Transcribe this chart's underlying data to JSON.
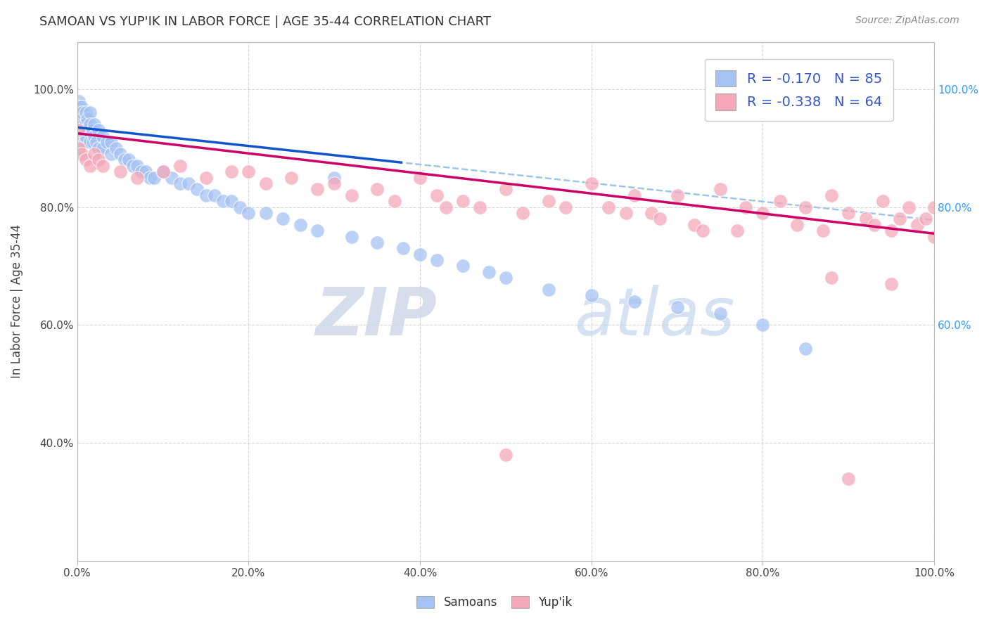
{
  "title": "SAMOAN VS YUP'IK IN LABOR FORCE | AGE 35-44 CORRELATION CHART",
  "source": "Source: ZipAtlas.com",
  "ylabel": "In Labor Force | Age 35-44",
  "legend_label_1": "Samoans",
  "legend_label_2": "Yup'ik",
  "R1": -0.17,
  "N1": 85,
  "R2": -0.338,
  "N2": 64,
  "color_blue": "#a4c2f4",
  "color_pink": "#f4a7b9",
  "color_blue_line": "#1155cc",
  "color_pink_line": "#cc0066",
  "color_dashed": "#9fc5e8",
  "watermark_zip": "ZIP",
  "watermark_atlas": "atlas",
  "background_color": "#ffffff",
  "grid_color": "#cccccc",
  "xlim": [
    0.0,
    1.0
  ],
  "ylim": [
    0.2,
    1.08
  ],
  "xticks": [
    0.0,
    0.2,
    0.4,
    0.6,
    0.8,
    1.0
  ],
  "yticks": [
    0.4,
    0.6,
    0.8,
    1.0
  ],
  "xticklabels": [
    "0.0%",
    "20.0%",
    "40.0%",
    "60.0%",
    "80.0%",
    "100.0%"
  ],
  "yticklabels_left": [
    "40.0%",
    "60.0%",
    "80.0%",
    "100.0%"
  ],
  "yticklabels_right": [
    "60.0%",
    "80.0%",
    "100.0%"
  ],
  "right_yticks": [
    0.6,
    0.8,
    1.0
  ],
  "samoan_x": [
    0.001,
    0.001,
    0.001,
    0.002,
    0.002,
    0.002,
    0.003,
    0.003,
    0.003,
    0.004,
    0.004,
    0.004,
    0.005,
    0.005,
    0.005,
    0.006,
    0.006,
    0.006,
    0.007,
    0.007,
    0.008,
    0.008,
    0.009,
    0.009,
    0.01,
    0.01,
    0.01,
    0.012,
    0.012,
    0.015,
    0.015,
    0.015,
    0.018,
    0.018,
    0.02,
    0.02,
    0.022,
    0.025,
    0.025,
    0.03,
    0.03,
    0.035,
    0.04,
    0.04,
    0.045,
    0.05,
    0.055,
    0.06,
    0.065,
    0.07,
    0.075,
    0.08,
    0.085,
    0.09,
    0.1,
    0.11,
    0.12,
    0.13,
    0.14,
    0.15,
    0.16,
    0.17,
    0.18,
    0.19,
    0.2,
    0.22,
    0.24,
    0.26,
    0.28,
    0.3,
    0.32,
    0.35,
    0.38,
    0.4,
    0.42,
    0.45,
    0.48,
    0.5,
    0.55,
    0.6,
    0.65,
    0.7,
    0.75,
    0.8,
    0.85
  ],
  "samoan_y": [
    0.97,
    0.95,
    0.93,
    0.98,
    0.96,
    0.94,
    0.97,
    0.95,
    0.92,
    0.96,
    0.94,
    0.92,
    0.97,
    0.95,
    0.93,
    0.96,
    0.94,
    0.91,
    0.95,
    0.93,
    0.94,
    0.92,
    0.93,
    0.91,
    0.96,
    0.94,
    0.92,
    0.95,
    0.93,
    0.96,
    0.94,
    0.91,
    0.93,
    0.91,
    0.94,
    0.92,
    0.91,
    0.93,
    0.9,
    0.92,
    0.9,
    0.91,
    0.91,
    0.89,
    0.9,
    0.89,
    0.88,
    0.88,
    0.87,
    0.87,
    0.86,
    0.86,
    0.85,
    0.85,
    0.86,
    0.85,
    0.84,
    0.84,
    0.83,
    0.82,
    0.82,
    0.81,
    0.81,
    0.8,
    0.79,
    0.79,
    0.78,
    0.77,
    0.76,
    0.85,
    0.75,
    0.74,
    0.73,
    0.72,
    0.71,
    0.7,
    0.69,
    0.68,
    0.66,
    0.65,
    0.64,
    0.63,
    0.62,
    0.6,
    0.56
  ],
  "yupik_x": [
    0.001,
    0.002,
    0.005,
    0.01,
    0.015,
    0.02,
    0.025,
    0.03,
    0.05,
    0.07,
    0.1,
    0.12,
    0.15,
    0.18,
    0.2,
    0.22,
    0.25,
    0.28,
    0.3,
    0.32,
    0.35,
    0.37,
    0.4,
    0.42,
    0.43,
    0.45,
    0.47,
    0.5,
    0.52,
    0.55,
    0.57,
    0.6,
    0.62,
    0.64,
    0.65,
    0.67,
    0.68,
    0.7,
    0.72,
    0.73,
    0.75,
    0.77,
    0.78,
    0.8,
    0.82,
    0.84,
    0.85,
    0.87,
    0.88,
    0.9,
    0.92,
    0.93,
    0.94,
    0.95,
    0.96,
    0.97,
    0.98,
    0.99,
    1.0,
    1.0,
    0.5,
    0.9,
    0.95,
    0.88
  ],
  "yupik_y": [
    0.93,
    0.9,
    0.89,
    0.88,
    0.87,
    0.89,
    0.88,
    0.87,
    0.86,
    0.85,
    0.86,
    0.87,
    0.85,
    0.86,
    0.86,
    0.84,
    0.85,
    0.83,
    0.84,
    0.82,
    0.83,
    0.81,
    0.85,
    0.82,
    0.8,
    0.81,
    0.8,
    0.83,
    0.79,
    0.81,
    0.8,
    0.84,
    0.8,
    0.79,
    0.82,
    0.79,
    0.78,
    0.82,
    0.77,
    0.76,
    0.83,
    0.76,
    0.8,
    0.79,
    0.81,
    0.77,
    0.8,
    0.76,
    0.82,
    0.79,
    0.78,
    0.77,
    0.81,
    0.76,
    0.78,
    0.8,
    0.77,
    0.78,
    0.8,
    0.75,
    0.38,
    0.34,
    0.67,
    0.68
  ]
}
